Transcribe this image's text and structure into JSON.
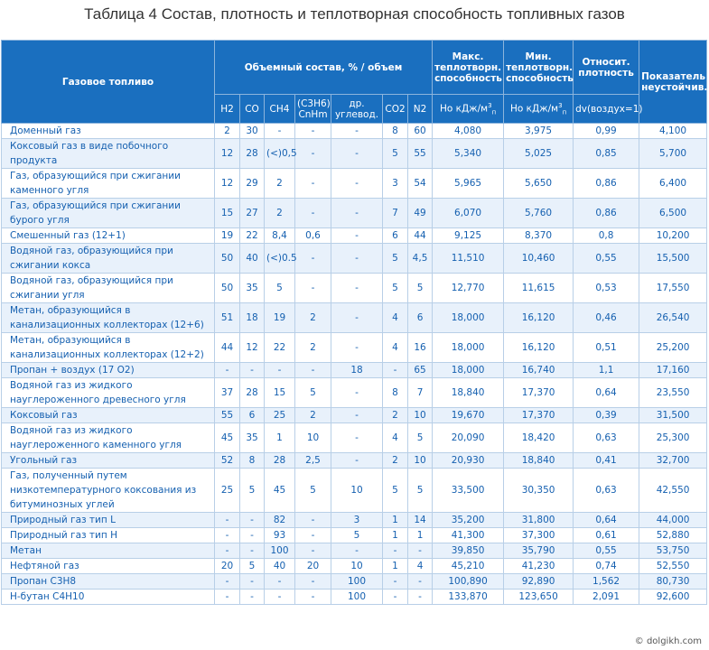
{
  "title": "Таблица 4 Состав, плотность и теплотворная способность топливных газов",
  "header": {
    "fuel": "Газовое топливо",
    "composition": "Объемный состав, % / объем",
    "max": "Макс. теплотворн. способность",
    "min": "Мин. теплотворн. способность",
    "density": "Относит. плотность",
    "instability": "Показатель неустойчив.",
    "h2": "H2",
    "co": "CO",
    "ch4": "CH4",
    "c3h6": "(C3H6) CnHm",
    "other": "др. углевод.",
    "co2": "CO2",
    "n2": "N2",
    "unit_max_pre": "Ho кДж/м",
    "unit_min_pre": "Hо кДж/м",
    "unit_sup": "3",
    "unit_sub": "п",
    "density_unit": "dv(воздух=1)"
  },
  "rows": [
    {
      "name": "Доменный газ",
      "h2": "2",
      "co": "30",
      "ch4": "-",
      "c3h6": "-",
      "other": "-",
      "co2": "8",
      "n2": "60",
      "max": "4,080",
      "min": "3,975",
      "d": "0,99",
      "k": "4,100"
    },
    {
      "name": "Коксовый газ в виде побочного продукта",
      "h2": "12",
      "co": "28",
      "ch4": "(<)0,5",
      "c3h6": "-",
      "other": "-",
      "co2": "5",
      "n2": "55",
      "max": "5,340",
      "min": "5,025",
      "d": "0,85",
      "k": "5,700"
    },
    {
      "name": "Газ, образующийся при сжигании каменного угля",
      "h2": "12",
      "co": "29",
      "ch4": "2",
      "c3h6": "-",
      "other": "-",
      "co2": "3",
      "n2": "54",
      "max": "5,965",
      "min": "5,650",
      "d": "0,86",
      "k": "6,400"
    },
    {
      "name": "Газ, образующийся при сжигании бурого угля",
      "h2": "15",
      "co": "27",
      "ch4": "2",
      "c3h6": "-",
      "other": "-",
      "co2": "7",
      "n2": "49",
      "max": "6,070",
      "min": "5,760",
      "d": "0,86",
      "k": "6,500"
    },
    {
      "name": "Смешенный газ (12+1)",
      "h2": "19",
      "co": "22",
      "ch4": "8,4",
      "c3h6": "0,6",
      "other": "-",
      "co2": "6",
      "n2": "44",
      "max": "9,125",
      "min": "8,370",
      "d": "0,8",
      "k": "10,200"
    },
    {
      "name": "Водяной газ, образующийся при сжигании кокса",
      "h2": "50",
      "co": "40",
      "ch4": "(<)0.5",
      "c3h6": "-",
      "other": "-",
      "co2": "5",
      "n2": "4,5",
      "max": "11,510",
      "min": "10,460",
      "d": "0,55",
      "k": "15,500"
    },
    {
      "name": "Водяной газ, образующийся  при сжигании угля",
      "h2": "50",
      "co": "35",
      "ch4": "5",
      "c3h6": "-",
      "other": "-",
      "co2": "5",
      "n2": "5",
      "max": "12,770",
      "min": "11,615",
      "d": "0,53",
      "k": "17,550"
    },
    {
      "name": "Метан, образующийся в канализационных коллекторах (12+6)",
      "h2": "51",
      "co": "18",
      "ch4": "19",
      "c3h6": "2",
      "other": "-",
      "co2": "4",
      "n2": "6",
      "max": "18,000",
      "min": "16,120",
      "d": "0,46",
      "k": "26,540"
    },
    {
      "name": "Метан, образующийся в канализационных коллекторах (12+2)",
      "h2": "44",
      "co": "12",
      "ch4": "22",
      "c3h6": "2",
      "other": "-",
      "co2": "4",
      "n2": "16",
      "max": "18,000",
      "min": "16,120",
      "d": "0,51",
      "k": "25,200"
    },
    {
      "name": "Пропан + воздух (17 О2)",
      "h2": "-",
      "co": "-",
      "ch4": "-",
      "c3h6": "-",
      "other": "18",
      "co2": "-",
      "n2": "65",
      "max": "18,000",
      "min": "16,740",
      "d": "1,1",
      "k": "17,160"
    },
    {
      "name": "Водяной газ из жидкого науглероженного древесного угля",
      "h2": "37",
      "co": "28",
      "ch4": "15",
      "c3h6": "5",
      "other": "-",
      "co2": "8",
      "n2": "7",
      "max": "18,840",
      "min": "17,370",
      "d": "0,64",
      "k": "23,550"
    },
    {
      "name": "Коксовый газ",
      "h2": "55",
      "co": "6",
      "ch4": "25",
      "c3h6": "2",
      "other": "-",
      "co2": "2",
      "n2": "10",
      "max": "19,670",
      "min": "17,370",
      "d": "0,39",
      "k": "31,500"
    },
    {
      "name": "Водяной газ из жидкого науглероженного каменного угля",
      "h2": "45",
      "co": "35",
      "ch4": "1",
      "c3h6": "10",
      "other": "-",
      "co2": "4",
      "n2": "5",
      "max": "20,090",
      "min": "18,420",
      "d": "0,63",
      "k": "25,300"
    },
    {
      "name": "Угольный газ",
      "h2": "52",
      "co": "8",
      "ch4": "28",
      "c3h6": "2,5",
      "other": "-",
      "co2": "2",
      "n2": "10",
      "max": "20,930",
      "min": "18,840",
      "d": "0,41",
      "k": "32,700"
    },
    {
      "name": "Газ, полученный путем низкотемпературного коксования из битуминозных углей",
      "h2": "25",
      "co": "5",
      "ch4": "45",
      "c3h6": "5",
      "other": "10",
      "co2": "5",
      "n2": "5",
      "max": "33,500",
      "min": "30,350",
      "d": "0,63",
      "k": "42,550"
    },
    {
      "name": "Природный газ тип L",
      "h2": "-",
      "co": "-",
      "ch4": "82",
      "c3h6": "-",
      "other": "3",
      "co2": "1",
      "n2": "14",
      "max": "35,200",
      "min": "31,800",
      "d": "0,64",
      "k": "44,000"
    },
    {
      "name": "Природный газ тип Н",
      "h2": "-",
      "co": "-",
      "ch4": "93",
      "c3h6": "-",
      "other": "5",
      "co2": "1",
      "n2": "1",
      "max": "41,300",
      "min": "37,300",
      "d": "0,61",
      "k": "52,880"
    },
    {
      "name": "Метан",
      "h2": "-",
      "co": "-",
      "ch4": "100",
      "c3h6": "-",
      "other": "-",
      "co2": "-",
      "n2": "-",
      "max": "39,850",
      "min": "35,790",
      "d": "0,55",
      "k": "53,750"
    },
    {
      "name": "Нефтяной газ",
      "h2": "20",
      "co": "5",
      "ch4": "40",
      "c3h6": "20",
      "other": "10",
      "co2": "1",
      "n2": "4",
      "max": "45,210",
      "min": "41,230",
      "d": "0,74",
      "k": "52,550"
    },
    {
      "name": "Пропан C3H8",
      "h2": "-",
      "co": "-",
      "ch4": "-",
      "c3h6": "-",
      "other": "100",
      "co2": "-",
      "n2": "-",
      "max": "100,890",
      "min": "92,890",
      "d": "1,562",
      "k": "80,730"
    },
    {
      "name": "Н-бутан C4H10",
      "h2": "-",
      "co": "-",
      "ch4": "-",
      "c3h6": "-",
      "other": "100",
      "co2": "-",
      "n2": "-",
      "max": "133,870",
      "min": "123,650",
      "d": "2,091",
      "k": "92,600"
    }
  ],
  "footer": "© dolgikh.com"
}
